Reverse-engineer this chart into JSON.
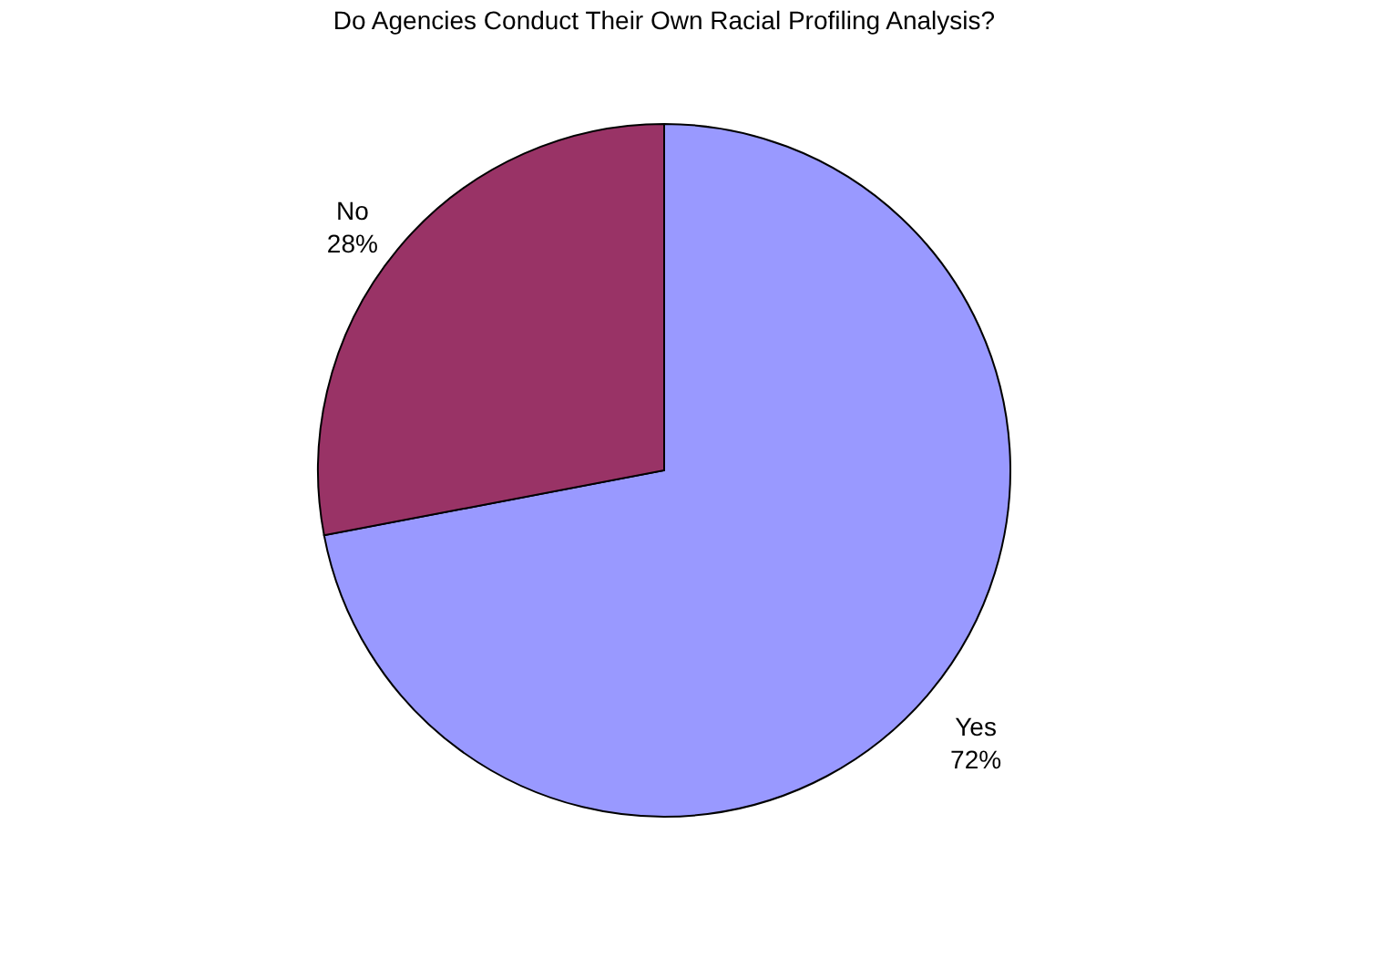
{
  "chart_data": {
    "type": "pie",
    "title": "Do Agencies Conduct Their Own Racial Profiling Analysis?",
    "categories": [
      "Yes",
      "No"
    ],
    "values": [
      72,
      28
    ],
    "value_labels": [
      "72%",
      "28%"
    ],
    "colors": [
      "#9999ff",
      "#993366"
    ],
    "legend": false
  }
}
